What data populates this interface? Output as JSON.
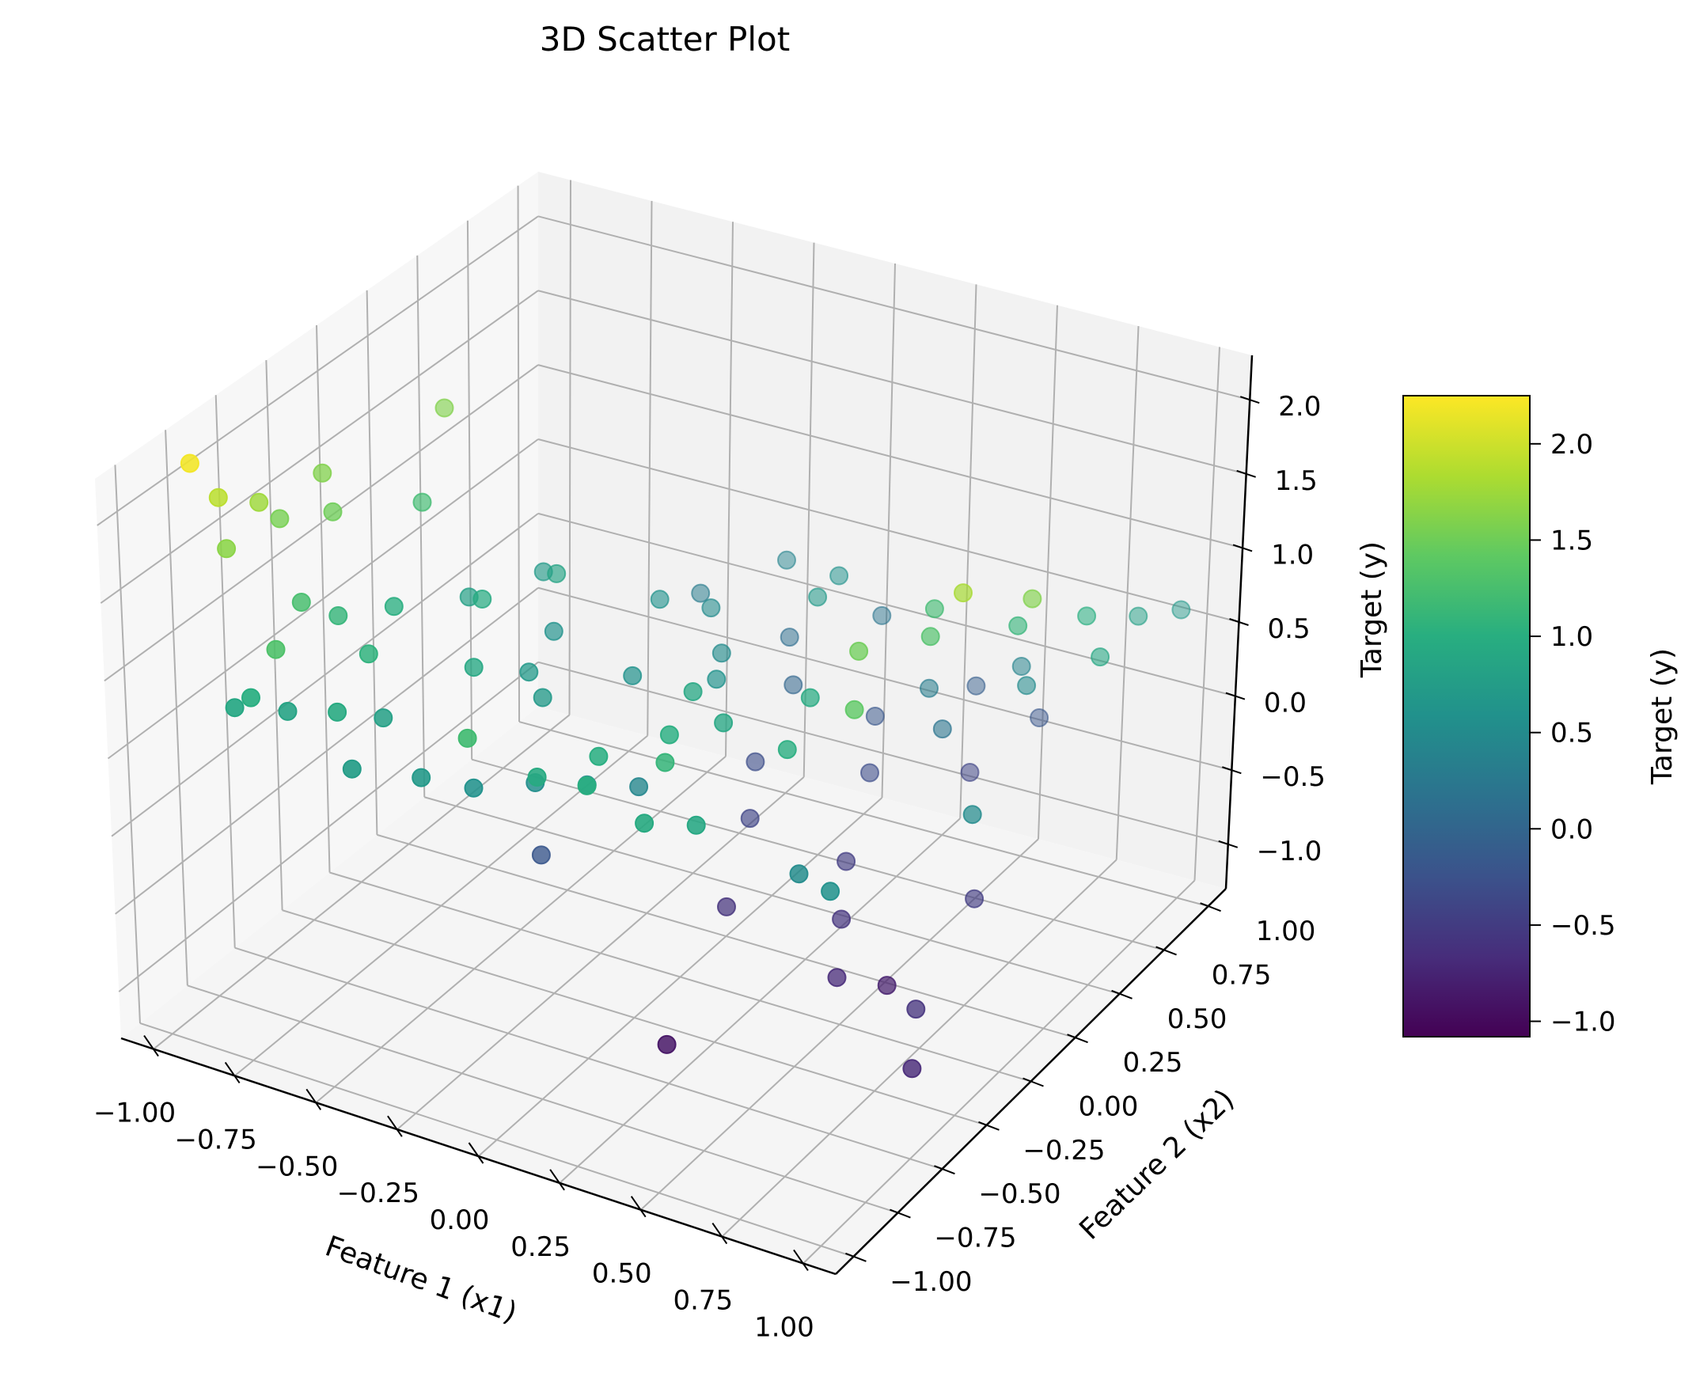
{
  "chart_data": {
    "type": "scatter",
    "projection": "3d",
    "title": "3D Scatter Plot",
    "xlabel": "Feature 1 (x1)",
    "ylabel": "Feature 2 (x2)",
    "zlabel": "Target (y)",
    "xlim": [
      -1.1,
      1.1
    ],
    "ylim": [
      -1.1,
      1.1
    ],
    "zlim": [
      -1.3,
      2.3
    ],
    "xticks": [
      -1.0,
      -0.75,
      -0.5,
      -0.25,
      0.0,
      0.25,
      0.5,
      0.75,
      1.0
    ],
    "yticks": [
      -1.0,
      -0.75,
      -0.5,
      -0.25,
      0.0,
      0.25,
      0.5,
      0.75,
      1.0
    ],
    "zticks": [
      -1.0,
      -0.5,
      0.0,
      0.5,
      1.0,
      1.5,
      2.0
    ],
    "xtick_labels": [
      "−1.00",
      "−0.75",
      "−0.50",
      "−0.25",
      "0.00",
      "0.25",
      "0.50",
      "0.75",
      "1.00"
    ],
    "ytick_labels": [
      "−1.00",
      "−0.75",
      "−0.50",
      "−0.25",
      "0.00",
      "0.25",
      "0.50",
      "0.75",
      "1.00"
    ],
    "ztick_labels": [
      "−1.0",
      "−0.5",
      "0.0",
      "0.5",
      "1.0",
      "1.5",
      "2.0"
    ],
    "grid": true,
    "colormap": "viridis",
    "colorbar": {
      "label": "Target (y)",
      "range": [
        -1.08,
        2.25
      ],
      "ticks": [
        -1.0,
        -0.5,
        0.0,
        0.5,
        1.0,
        1.5,
        2.0
      ],
      "tick_labels": [
        "−1.0",
        "−0.5",
        "0.0",
        "0.5",
        "1.0",
        "1.5",
        "2.0"
      ]
    },
    "points": [
      [
        -1.0,
        -0.8,
        2.2
      ],
      [
        -0.98,
        -0.7,
        1.9
      ],
      [
        -0.95,
        -0.55,
        1.75
      ],
      [
        -0.93,
        -0.75,
        1.65
      ],
      [
        -0.95,
        -0.45,
        1.55
      ],
      [
        -0.97,
        -0.2,
        1.6
      ],
      [
        -0.88,
        -0.3,
        1.5
      ],
      [
        -0.9,
        0.3,
        1.6
      ],
      [
        -0.7,
        -0.9,
        1.3
      ],
      [
        -0.8,
        -0.6,
        1.25
      ],
      [
        -0.85,
        0.1,
        1.2
      ],
      [
        -0.75,
        -0.5,
        1.1
      ],
      [
        -0.7,
        -0.3,
        1.0
      ],
      [
        -0.6,
        -0.6,
        1.05
      ],
      [
        -0.55,
        -0.1,
        0.95
      ],
      [
        -0.5,
        0.2,
        0.85
      ],
      [
        -0.65,
        0.0,
        0.8
      ],
      [
        -0.4,
        -0.4,
        0.9
      ],
      [
        -0.75,
        -0.95,
        1.0
      ],
      [
        -0.55,
        -0.85,
        0.95
      ],
      [
        -0.8,
        -0.95,
        0.9
      ],
      [
        -0.7,
        -0.85,
        0.85
      ],
      [
        -0.6,
        0.3,
        0.7
      ],
      [
        -0.45,
        0.1,
        0.6
      ],
      [
        -0.35,
        -0.2,
        0.7
      ],
      [
        -0.3,
        0.4,
        0.6
      ],
      [
        -0.2,
        0.5,
        0.5
      ],
      [
        -0.5,
        -0.7,
        0.8
      ],
      [
        -0.45,
        -0.95,
        0.75
      ],
      [
        -0.3,
        -0.85,
        0.7
      ],
      [
        -0.2,
        -0.75,
        0.6
      ],
      [
        -0.1,
        -0.6,
        0.55
      ],
      [
        0.0,
        -0.5,
        0.5
      ],
      [
        0.1,
        -0.4,
        0.45
      ],
      [
        -0.25,
        -0.3,
        0.7
      ],
      [
        -0.15,
        0.0,
        0.6
      ],
      [
        -0.05,
        0.3,
        0.5
      ],
      [
        0.05,
        0.1,
        0.6
      ],
      [
        -0.35,
        0.7,
        0.3
      ],
      [
        -0.2,
        0.9,
        0.4
      ],
      [
        -0.1,
        0.75,
        0.1
      ],
      [
        0.0,
        0.6,
        0.0
      ],
      [
        0.1,
        0.9,
        0.2
      ],
      [
        0.2,
        0.7,
        -0.2
      ],
      [
        0.3,
        0.5,
        -0.3
      ],
      [
        0.4,
        0.9,
        -0.1
      ],
      [
        0.5,
        0.7,
        -0.4
      ],
      [
        0.6,
        0.9,
        -0.2
      ],
      [
        0.15,
        -0.2,
        0.9
      ],
      [
        0.25,
        -0.5,
        1.0
      ],
      [
        0.35,
        -0.7,
        1.1
      ],
      [
        0.3,
        -0.3,
        0.9
      ],
      [
        0.45,
        -0.1,
        0.95
      ],
      [
        0.55,
        -0.4,
        1.0
      ],
      [
        0.2,
        -0.85,
        1.0
      ],
      [
        0.4,
        -0.9,
        0.95
      ],
      [
        0.5,
        -0.8,
        0.9
      ],
      [
        0.05,
        -0.85,
        0.95
      ],
      [
        0.15,
        -0.7,
        1.0
      ],
      [
        0.65,
        -0.2,
        1.5
      ],
      [
        0.75,
        -0.4,
        1.4
      ],
      [
        0.85,
        0.0,
        1.8
      ],
      [
        0.95,
        0.2,
        1.6
      ],
      [
        0.7,
        0.1,
        1.3
      ],
      [
        0.6,
        0.3,
        1.2
      ],
      [
        0.8,
        0.4,
        1.1
      ],
      [
        0.9,
        0.6,
        1.0
      ],
      [
        1.0,
        0.5,
        0.9
      ],
      [
        0.95,
        0.8,
        0.8
      ],
      [
        1.0,
        0.95,
        0.7
      ],
      [
        0.4,
        0.2,
        -0.5
      ],
      [
        0.5,
        0.0,
        -0.6
      ],
      [
        0.6,
        -0.2,
        -0.7
      ],
      [
        0.7,
        -0.1,
        -0.8
      ],
      [
        0.8,
        0.2,
        -0.5
      ],
      [
        0.9,
        -0.3,
        -0.6
      ],
      [
        1.0,
        -0.5,
        -0.7
      ],
      [
        0.2,
        -0.1,
        -0.6
      ],
      [
        0.1,
        0.2,
        -0.4
      ],
      [
        0.0,
        0.4,
        -0.3
      ],
      [
        -0.2,
        -0.4,
        -0.2
      ],
      [
        0.3,
        -0.6,
        -0.9
      ],
      [
        0.45,
        0.55,
        0.3
      ],
      [
        0.55,
        0.45,
        0.2
      ],
      [
        0.65,
        0.7,
        0.4
      ],
      [
        0.75,
        0.55,
        0.5
      ],
      [
        -0.1,
        -0.95,
        1.2
      ],
      [
        0.05,
        0.75,
        0.6
      ],
      [
        0.1,
        0.55,
        0.7
      ],
      [
        0.95,
        -0.1,
        0.5
      ],
      [
        0.85,
        -0.7,
        0.6
      ],
      [
        0.7,
        -0.6,
        0.5
      ]
    ]
  }
}
